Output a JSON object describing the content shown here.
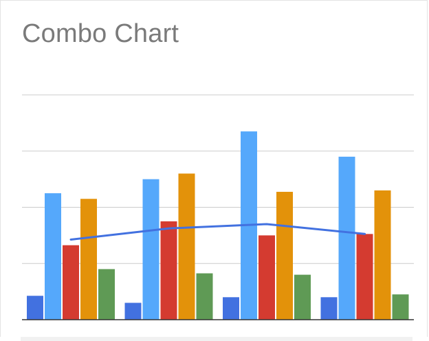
{
  "chart_data": {
    "type": "bar",
    "title": "Combo Chart",
    "xlabel": "",
    "ylabel": "",
    "grid": true,
    "ylim": [
      0,
      8
    ],
    "categories": [
      "",
      "",
      "",
      ""
    ],
    "series": [
      {
        "values": [
          0.85,
          0.6,
          0.8,
          0.8
        ],
        "color": "#4271e0"
      },
      {
        "values": [
          4.5,
          5.0,
          6.7,
          5.8
        ],
        "color": "#55a8fb"
      },
      {
        "values": [
          2.65,
          3.5,
          3.0,
          3.05
        ],
        "color": "#d43b30"
      },
      {
        "values": [
          4.3,
          5.2,
          4.55,
          4.6
        ],
        "color": "#e3920a"
      },
      {
        "values": [
          1.8,
          1.65,
          1.6,
          0.9
        ],
        "color": "#5f9a55"
      }
    ],
    "line_series": {
      "type": "line",
      "values": [
        2.85,
        3.25,
        3.4,
        3.05
      ],
      "color": "#4271e0"
    },
    "colors": {
      "title": "#7a7a7a",
      "grid": "#cccccc",
      "axis": "#333333"
    }
  }
}
